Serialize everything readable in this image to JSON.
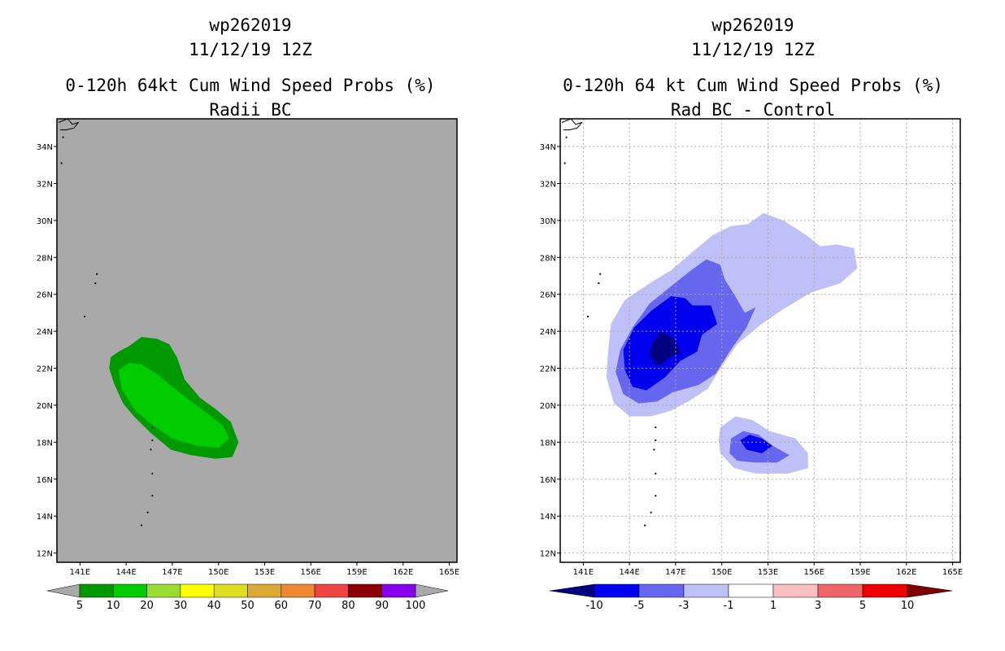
{
  "chart_data": [
    {
      "type": "heatmap",
      "storm_id": "wp262019",
      "date": "11/12/19 12Z",
      "title": "0-120h 64kt Cum Wind Speed Probs (%)",
      "subtitle": "Radii BC",
      "background": "#a9a9a9",
      "lon_range": [
        139.5,
        165.5
      ],
      "lat_range": [
        11.5,
        35.5
      ],
      "lon_ticks": [
        "141E",
        "144E",
        "147E",
        "150E",
        "153E",
        "156E",
        "159E",
        "162E",
        "165E"
      ],
      "lat_ticks": [
        "12N",
        "14N",
        "16N",
        "18N",
        "20N",
        "22N",
        "24N",
        "26N",
        "28N",
        "30N",
        "32N",
        "34N"
      ],
      "colorbar": {
        "labels": [
          "5",
          "10",
          "20",
          "30",
          "40",
          "50",
          "60",
          "70",
          "80",
          "90",
          "100"
        ],
        "colors": [
          "#009900",
          "#00cc00",
          "#99dd33",
          "#ffff00",
          "#dddd22",
          "#ddaa33",
          "#ee8833",
          "#ee4444",
          "#8b0000",
          "#8800ee"
        ],
        "end_colors": [
          "#a9a9a9",
          "#a9a9a9"
        ]
      },
      "contours": [
        {
          "level": "5-10",
          "color": "#009900",
          "lonlat": [
            [
              143.0,
              22.6
            ],
            [
              143.5,
              22.9
            ],
            [
              144.2,
              23.2
            ],
            [
              145.0,
              23.7
            ],
            [
              146.0,
              23.6
            ],
            [
              146.8,
              23.3
            ],
            [
              147.3,
              22.6
            ],
            [
              147.8,
              21.4
            ],
            [
              148.8,
              20.4
            ],
            [
              149.8,
              19.8
            ],
            [
              150.8,
              19.1
            ],
            [
              151.3,
              18.0
            ],
            [
              150.9,
              17.2
            ],
            [
              149.8,
              17.1
            ],
            [
              148.2,
              17.3
            ],
            [
              146.9,
              17.6
            ],
            [
              145.6,
              18.5
            ],
            [
              144.5,
              19.4
            ],
            [
              143.8,
              20.1
            ],
            [
              143.2,
              21.2
            ],
            [
              142.9,
              22.0
            ]
          ]
        },
        {
          "level": "10-20",
          "color": "#00cc00",
          "lonlat": [
            [
              143.5,
              21.9
            ],
            [
              144.2,
              22.3
            ],
            [
              145.0,
              22.2
            ],
            [
              146.0,
              21.7
            ],
            [
              147.0,
              21.0
            ],
            [
              148.1,
              20.3
            ],
            [
              149.2,
              19.6
            ],
            [
              150.3,
              18.9
            ],
            [
              150.7,
              18.2
            ],
            [
              150.0,
              17.7
            ],
            [
              148.6,
              17.8
            ],
            [
              147.0,
              18.2
            ],
            [
              145.6,
              19.0
            ],
            [
              144.5,
              19.8
            ],
            [
              143.7,
              20.9
            ]
          ]
        }
      ],
      "islands": [
        {
          "name": "shikoku-outline",
          "lonlat": [
            [
              139.6,
              35.3
            ],
            [
              140.2,
              35.5
            ],
            [
              140.5,
              35.2
            ],
            [
              140.9,
              35.3
            ],
            [
              140.6,
              35.0
            ],
            [
              140.1,
              34.9
            ],
            [
              139.7,
              34.9
            ]
          ]
        },
        {
          "lon": 139.9,
          "lat": 34.5
        },
        {
          "lon": 139.8,
          "lat": 33.1
        },
        {
          "lon": 142.1,
          "lat": 27.1
        },
        {
          "lon": 142.0,
          "lat": 26.6
        },
        {
          "lon": 141.3,
          "lat": 24.8
        },
        {
          "lon": 145.7,
          "lat": 18.8
        },
        {
          "lon": 145.7,
          "lat": 18.1
        },
        {
          "lon": 145.6,
          "lat": 17.6
        },
        {
          "lon": 145.7,
          "lat": 16.3
        },
        {
          "lon": 145.7,
          "lat": 15.1
        },
        {
          "lon": 145.4,
          "lat": 14.2
        },
        {
          "lon": 145.0,
          "lat": 13.5
        }
      ]
    },
    {
      "type": "heatmap",
      "storm_id": "wp262019",
      "date": "11/12/19 12Z",
      "title": "0-120h 64 kt Cum Wind Speed Probs (%)",
      "subtitle": "Rad BC - Control",
      "background": "#ffffff",
      "lon_range": [
        139.5,
        165.5
      ],
      "lat_range": [
        11.5,
        35.5
      ],
      "lon_ticks": [
        "141E",
        "144E",
        "147E",
        "150E",
        "153E",
        "156E",
        "159E",
        "162E",
        "165E"
      ],
      "lat_ticks": [
        "12N",
        "14N",
        "16N",
        "18N",
        "20N",
        "22N",
        "24N",
        "26N",
        "28N",
        "30N",
        "32N",
        "34N"
      ],
      "grid": true,
      "colorbar": {
        "labels": [
          "-10",
          "-5",
          "-3",
          "-1",
          "1",
          "3",
          "5",
          "10"
        ],
        "colors": [
          "#0000ee",
          "#6666ee",
          "#c0c0f8",
          "#ffffff",
          "#f8c0c0",
          "#ee6666",
          "#ee0000"
        ],
        "end_colors": [
          "#000080",
          "#800000"
        ]
      },
      "contours": [
        {
          "level": "-3 to -1",
          "color": "#c0c0f8",
          "lonlat": [
            [
              142.6,
              22.8
            ],
            [
              142.8,
              24.4
            ],
            [
              143.7,
              25.7
            ],
            [
              145.3,
              26.6
            ],
            [
              146.7,
              27.3
            ],
            [
              148.1,
              28.3
            ],
            [
              149.4,
              29.2
            ],
            [
              150.6,
              29.7
            ],
            [
              151.7,
              29.8
            ],
            [
              152.7,
              30.4
            ],
            [
              154.0,
              30.0
            ],
            [
              155.5,
              29.2
            ],
            [
              156.4,
              28.6
            ],
            [
              157.5,
              28.7
            ],
            [
              158.6,
              28.5
            ],
            [
              158.8,
              27.4
            ],
            [
              157.7,
              26.6
            ],
            [
              155.8,
              26.1
            ],
            [
              154.0,
              25.2
            ],
            [
              152.6,
              24.4
            ],
            [
              151.0,
              23.3
            ],
            [
              149.9,
              22.0
            ],
            [
              149.1,
              20.9
            ],
            [
              148.0,
              20.3
            ],
            [
              146.7,
              19.7
            ],
            [
              145.4,
              19.4
            ],
            [
              144.0,
              19.4
            ],
            [
              143.0,
              20.1
            ],
            [
              142.5,
              21.5
            ]
          ]
        },
        {
          "level": "-3 to -1",
          "color": "#c0c0f8",
          "lonlat": [
            [
              149.8,
              18.1
            ],
            [
              149.9,
              18.8
            ],
            [
              150.9,
              19.4
            ],
            [
              152.0,
              19.2
            ],
            [
              153.1,
              18.6
            ],
            [
              154.8,
              18.2
            ],
            [
              155.6,
              17.4
            ],
            [
              155.6,
              16.6
            ],
            [
              154.3,
              16.3
            ],
            [
              152.2,
              16.3
            ],
            [
              150.8,
              16.6
            ],
            [
              149.9,
              17.4
            ]
          ]
        },
        {
          "level": "-5 to -3",
          "color": "#6666ee",
          "lonlat": [
            [
              143.4,
              23.0
            ],
            [
              144.2,
              24.2
            ],
            [
              145.3,
              25.5
            ],
            [
              146.8,
              26.5
            ],
            [
              148.0,
              27.3
            ],
            [
              149.0,
              27.9
            ],
            [
              149.9,
              27.6
            ],
            [
              150.2,
              26.8
            ],
            [
              150.8,
              26.0
            ],
            [
              151.5,
              25.0
            ],
            [
              152.2,
              25.3
            ],
            [
              151.6,
              24.2
            ],
            [
              150.5,
              22.9
            ],
            [
              149.6,
              21.7
            ],
            [
              148.5,
              21.1
            ],
            [
              146.8,
              20.7
            ],
            [
              145.8,
              20.2
            ],
            [
              144.6,
              20.1
            ],
            [
              143.6,
              20.6
            ],
            [
              143.1,
              21.8
            ]
          ]
        },
        {
          "level": "-5 to -3",
          "color": "#6666ee",
          "lonlat": [
            [
              150.5,
              17.4
            ],
            [
              150.6,
              18.2
            ],
            [
              151.4,
              18.6
            ],
            [
              152.4,
              18.4
            ],
            [
              153.3,
              17.8
            ],
            [
              154.4,
              17.3
            ],
            [
              153.6,
              16.9
            ],
            [
              152.1,
              16.9
            ],
            [
              151.0,
              17.0
            ]
          ]
        },
        {
          "level": "-10 to -5",
          "color": "#0000ee",
          "lonlat": [
            [
              143.6,
              23.0
            ],
            [
              144.3,
              24.2
            ],
            [
              145.4,
              25.1
            ],
            [
              146.7,
              25.9
            ],
            [
              147.6,
              25.8
            ],
            [
              148.1,
              25.4
            ],
            [
              149.3,
              25.4
            ],
            [
              149.7,
              24.4
            ],
            [
              148.7,
              23.8
            ],
            [
              148.4,
              22.9
            ],
            [
              147.3,
              22.4
            ],
            [
              146.3,
              21.5
            ],
            [
              145.1,
              20.8
            ],
            [
              144.2,
              21.0
            ],
            [
              143.7,
              21.9
            ]
          ]
        },
        {
          "level": "-10 to -5",
          "color": "#0000ee",
          "lonlat": [
            [
              151.2,
              18.1
            ],
            [
              151.8,
              18.4
            ],
            [
              152.6,
              18.2
            ],
            [
              153.3,
              17.8
            ],
            [
              152.6,
              17.4
            ],
            [
              151.6,
              17.6
            ]
          ]
        },
        {
          "level": "< -10",
          "color": "#000080",
          "lonlat": [
            [
              145.3,
              22.7
            ],
            [
              145.5,
              23.4
            ],
            [
              146.1,
              24.0
            ],
            [
              146.9,
              23.6
            ],
            [
              147.3,
              22.8
            ],
            [
              146.6,
              22.6
            ],
            [
              145.9,
              22.1
            ]
          ]
        }
      ],
      "islands": [
        {
          "name": "shikoku-outline",
          "lonlat": [
            [
              139.6,
              35.3
            ],
            [
              140.2,
              35.5
            ],
            [
              140.5,
              35.2
            ],
            [
              140.9,
              35.3
            ],
            [
              140.6,
              35.0
            ],
            [
              140.1,
              34.9
            ],
            [
              139.7,
              34.9
            ]
          ]
        },
        {
          "lon": 139.9,
          "lat": 34.5
        },
        {
          "lon": 139.8,
          "lat": 33.1
        },
        {
          "lon": 142.1,
          "lat": 27.1
        },
        {
          "lon": 142.0,
          "lat": 26.6
        },
        {
          "lon": 141.3,
          "lat": 24.8
        },
        {
          "lon": 145.7,
          "lat": 18.8
        },
        {
          "lon": 145.7,
          "lat": 18.1
        },
        {
          "lon": 145.6,
          "lat": 17.6
        },
        {
          "lon": 145.7,
          "lat": 16.3
        },
        {
          "lon": 145.7,
          "lat": 15.1
        },
        {
          "lon": 145.4,
          "lat": 14.2
        },
        {
          "lon": 145.0,
          "lat": 13.5
        }
      ]
    }
  ]
}
